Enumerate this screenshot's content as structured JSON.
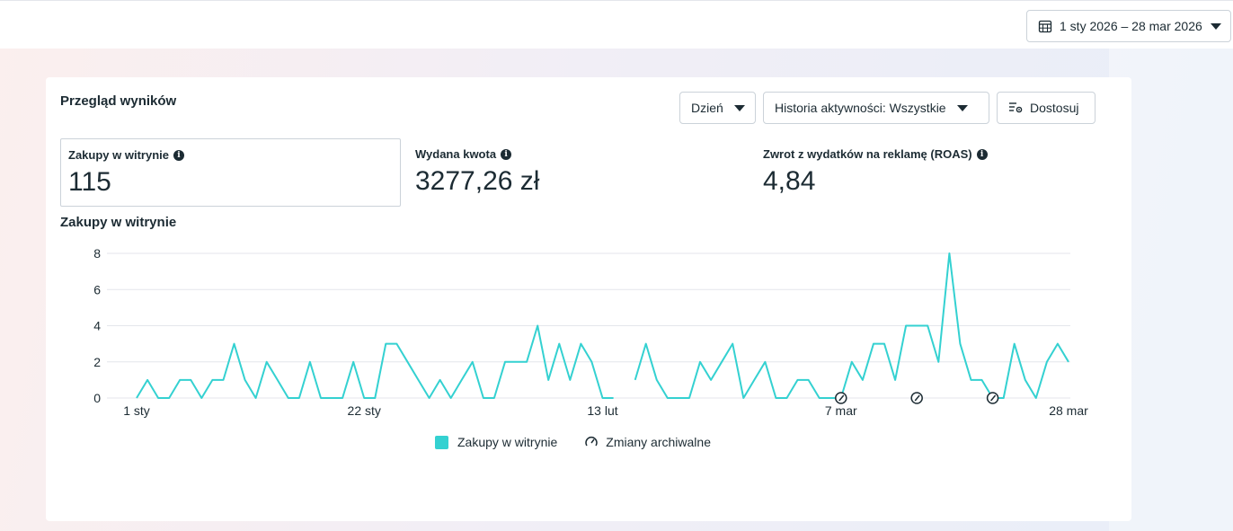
{
  "date_range": {
    "label": "1 sty 2026 – 28 mar 2026",
    "icon": "calendar-icon"
  },
  "card": {
    "title": "Przegląd wyników",
    "controls": {
      "granularity": "Dzień",
      "activity_history": "Historia aktywności: Wszystkie",
      "customize": "Dostosuj"
    },
    "metrics": [
      {
        "label": "Zakupy w witrynie",
        "value": "115",
        "selected": true
      },
      {
        "label": "Wydana kwota",
        "value": "3277,26 zł",
        "selected": false
      },
      {
        "label": "Zwrot z wydatków na reklamę (ROAS)",
        "value": "4,84",
        "selected": false
      }
    ],
    "chart_title": "Zakupy w witrynie",
    "legend": {
      "series_label": "Zakupy w witrynie",
      "changes_label": "Zmiany archiwalne"
    }
  },
  "colors": {
    "series": "#34d1d1",
    "grid": "#e4e6eb",
    "text": "#1c2b33"
  },
  "chart_data": {
    "type": "line",
    "ylim": [
      0,
      8
    ],
    "yticks": [
      0,
      2,
      4,
      6,
      8
    ],
    "xticks": [
      {
        "day": 1,
        "label": "1 sty"
      },
      {
        "day": 22,
        "label": "22 sty"
      },
      {
        "day": 44,
        "label": "13 lut"
      },
      {
        "day": 66,
        "label": "7 mar"
      },
      {
        "day": 87,
        "label": "28 mar"
      }
    ],
    "series": [
      {
        "name": "Zakupy w witrynie",
        "values": [
          0,
          1,
          0,
          0,
          1,
          1,
          0,
          1,
          1,
          3,
          1,
          0,
          2,
          1,
          0,
          0,
          2,
          0,
          0,
          0,
          2,
          0,
          0,
          3,
          3,
          2,
          1,
          0,
          1,
          0,
          1,
          2,
          0,
          0,
          2,
          2,
          2,
          4,
          1,
          3,
          1,
          3,
          2,
          0,
          0,
          null,
          1,
          3,
          1,
          0,
          0,
          0,
          2,
          1,
          2,
          3,
          0,
          1,
          2,
          0,
          0,
          1,
          1,
          0,
          0,
          0,
          2,
          1,
          3,
          3,
          1,
          4,
          4,
          4,
          2,
          8,
          3,
          1,
          1,
          0,
          0,
          3,
          1,
          0,
          2,
          3,
          2
        ]
      }
    ],
    "archive_change_days": [
      66,
      73,
      80
    ]
  }
}
